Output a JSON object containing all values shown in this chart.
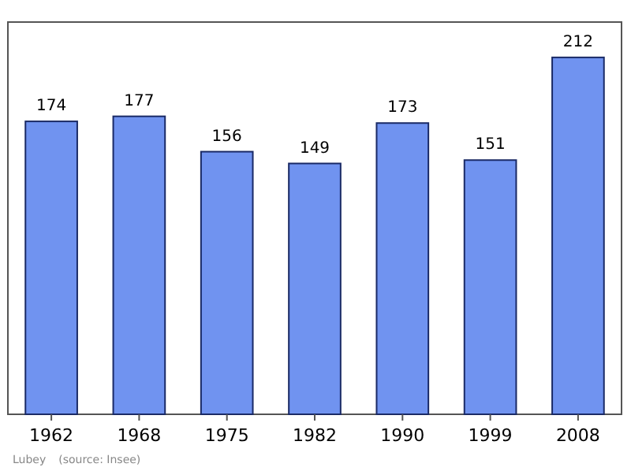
{
  "chart_data": {
    "type": "bar",
    "categories": [
      "1962",
      "1968",
      "1975",
      "1982",
      "1990",
      "1999",
      "2008"
    ],
    "values": [
      174,
      177,
      156,
      149,
      173,
      151,
      212
    ],
    "color": "#7093f0",
    "ylim": [
      0,
      233
    ],
    "data_labels": true,
    "annotations": [
      "Lubey",
      "(source: Insee)"
    ]
  }
}
